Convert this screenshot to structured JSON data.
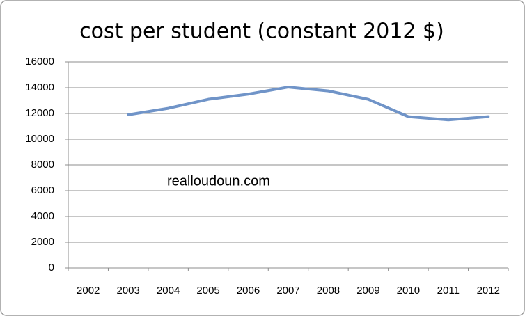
{
  "chart_data": {
    "type": "line",
    "title": "cost per student (constant 2012 $)",
    "categories": [
      "2002",
      "2003",
      "2004",
      "2005",
      "2006",
      "2007",
      "2008",
      "2009",
      "2010",
      "2011",
      "2012"
    ],
    "series": [
      {
        "name": "cost per student",
        "color": "#7094c8",
        "values": [
          null,
          11900,
          12400,
          13100,
          13500,
          14050,
          13750,
          13100,
          11750,
          11500,
          11750
        ]
      }
    ],
    "ylim": [
      0,
      16000
    ],
    "yticks": [
      0,
      2000,
      4000,
      6000,
      8000,
      10000,
      12000,
      14000,
      16000
    ],
    "grid": true,
    "legend": false,
    "annotations": [
      "realloudoun.com"
    ]
  }
}
